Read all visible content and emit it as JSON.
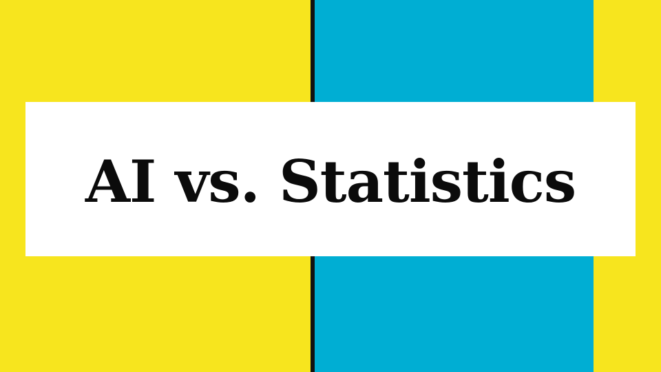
{
  "slide": {
    "title": "AI vs. Statistics"
  },
  "colors": {
    "yellow": "#F7E51E",
    "blue": "#00AED3",
    "divider": "#111111",
    "banner": "#FFFFFF",
    "title_text": "#0B0B0B"
  }
}
